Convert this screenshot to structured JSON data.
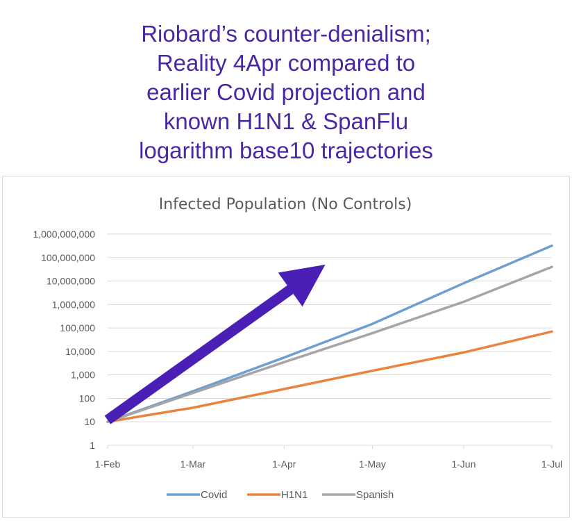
{
  "headline": {
    "lines": [
      "Riobard’s counter-denialism;",
      "Reality 4Apr compared to",
      "earlier Covid projection and",
      "known H1N1 & SpanFlu",
      "logarithm base10 trajectories"
    ]
  },
  "colors": {
    "headline": "#4a27a6",
    "arrow": "#4a1fb5",
    "covid": "#6e9fd1",
    "h1n1": "#e8843e",
    "spanish": "#a5a5a5",
    "grid": "#d9d9d9",
    "text": "#595959"
  },
  "chart_data": {
    "type": "line",
    "title": "Infected Population (No Controls)",
    "xlabel": "",
    "ylabel": "",
    "y_scale": "log10",
    "ylim": [
      1,
      1000000000
    ],
    "xlim": [
      "1-Feb",
      "1-Jul"
    ],
    "grid": "horizontal",
    "legend_position": "bottom",
    "x_ticks": [
      "1-Feb",
      "1-Mar",
      "1-Apr",
      "1-May",
      "1-Jun",
      "1-Jul"
    ],
    "y_ticks": [
      "1",
      "10",
      "100",
      "1,000",
      "10,000",
      "100,000",
      "1,000,000",
      "10,000,000",
      "100,000,000",
      "1,000,000,000"
    ],
    "x": [
      "1-Feb",
      "1-Mar",
      "1-Apr",
      "1-May",
      "1-Jun",
      "1-Jul"
    ],
    "series": [
      {
        "name": "Covid",
        "values": [
          10,
          200,
          5500,
          150000,
          8000000,
          320000000
        ]
      },
      {
        "name": "H1N1",
        "values": [
          10,
          40,
          250,
          1500,
          9000,
          70000
        ]
      },
      {
        "name": "Spanish",
        "values": [
          10,
          170,
          3500,
          60000,
          1300000,
          40000000
        ]
      }
    ],
    "annotations": [
      {
        "type": "arrow",
        "from": [
          "1-Feb",
          12
        ],
        "to": [
          "15-Apr",
          50000000
        ]
      }
    ]
  }
}
